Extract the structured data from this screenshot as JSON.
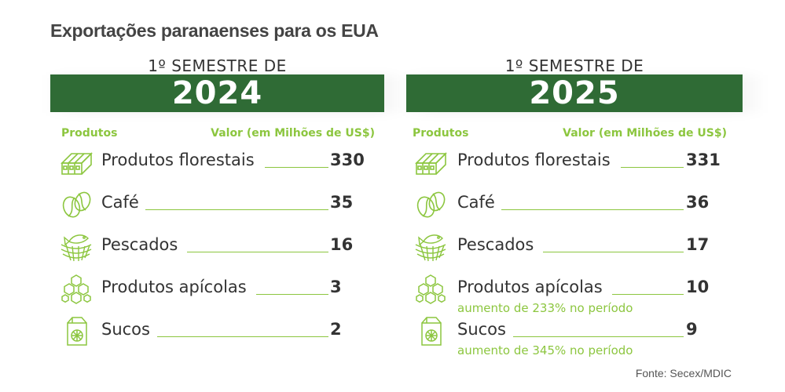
{
  "title": "Exportações paranaenses para os EUA",
  "source": "Fonte: Secex/MDIC",
  "colors": {
    "green_dark": "#2f6b35",
    "green_light": "#8cc63f",
    "text": "#333333"
  },
  "chart_data": [
    {
      "type": "table",
      "semester_label": "1º SEMESTRE DE",
      "year": "2024",
      "column_left": "Produtos",
      "column_right": "Valor (em Milhões de US$)",
      "rows": [
        {
          "icon": "lumber-icon",
          "product": "Produtos florestais",
          "value": 330
        },
        {
          "icon": "coffee-bean-icon",
          "product": "Café",
          "value": 35
        },
        {
          "icon": "fish-net-icon",
          "product": "Pescados",
          "value": 16
        },
        {
          "icon": "honeycomb-icon",
          "product": "Produtos apícolas",
          "value": 3
        },
        {
          "icon": "juice-box-icon",
          "product": "Sucos",
          "value": 2
        }
      ]
    },
    {
      "type": "table",
      "semester_label": "1º SEMESTRE DE",
      "year": "2025",
      "column_left": "Produtos",
      "column_right": "Valor (em Milhões de US$)",
      "rows": [
        {
          "icon": "lumber-icon",
          "product": "Produtos florestais",
          "value": 331
        },
        {
          "icon": "coffee-bean-icon",
          "product": "Café",
          "value": 36
        },
        {
          "icon": "fish-net-icon",
          "product": "Pescados",
          "value": 17
        },
        {
          "icon": "honeycomb-icon",
          "product": "Produtos apícolas",
          "value": 10,
          "note": "aumento de 233% no período"
        },
        {
          "icon": "juice-box-icon",
          "product": "Sucos",
          "value": 9,
          "note": "aumento de 345% no período"
        }
      ]
    }
  ]
}
